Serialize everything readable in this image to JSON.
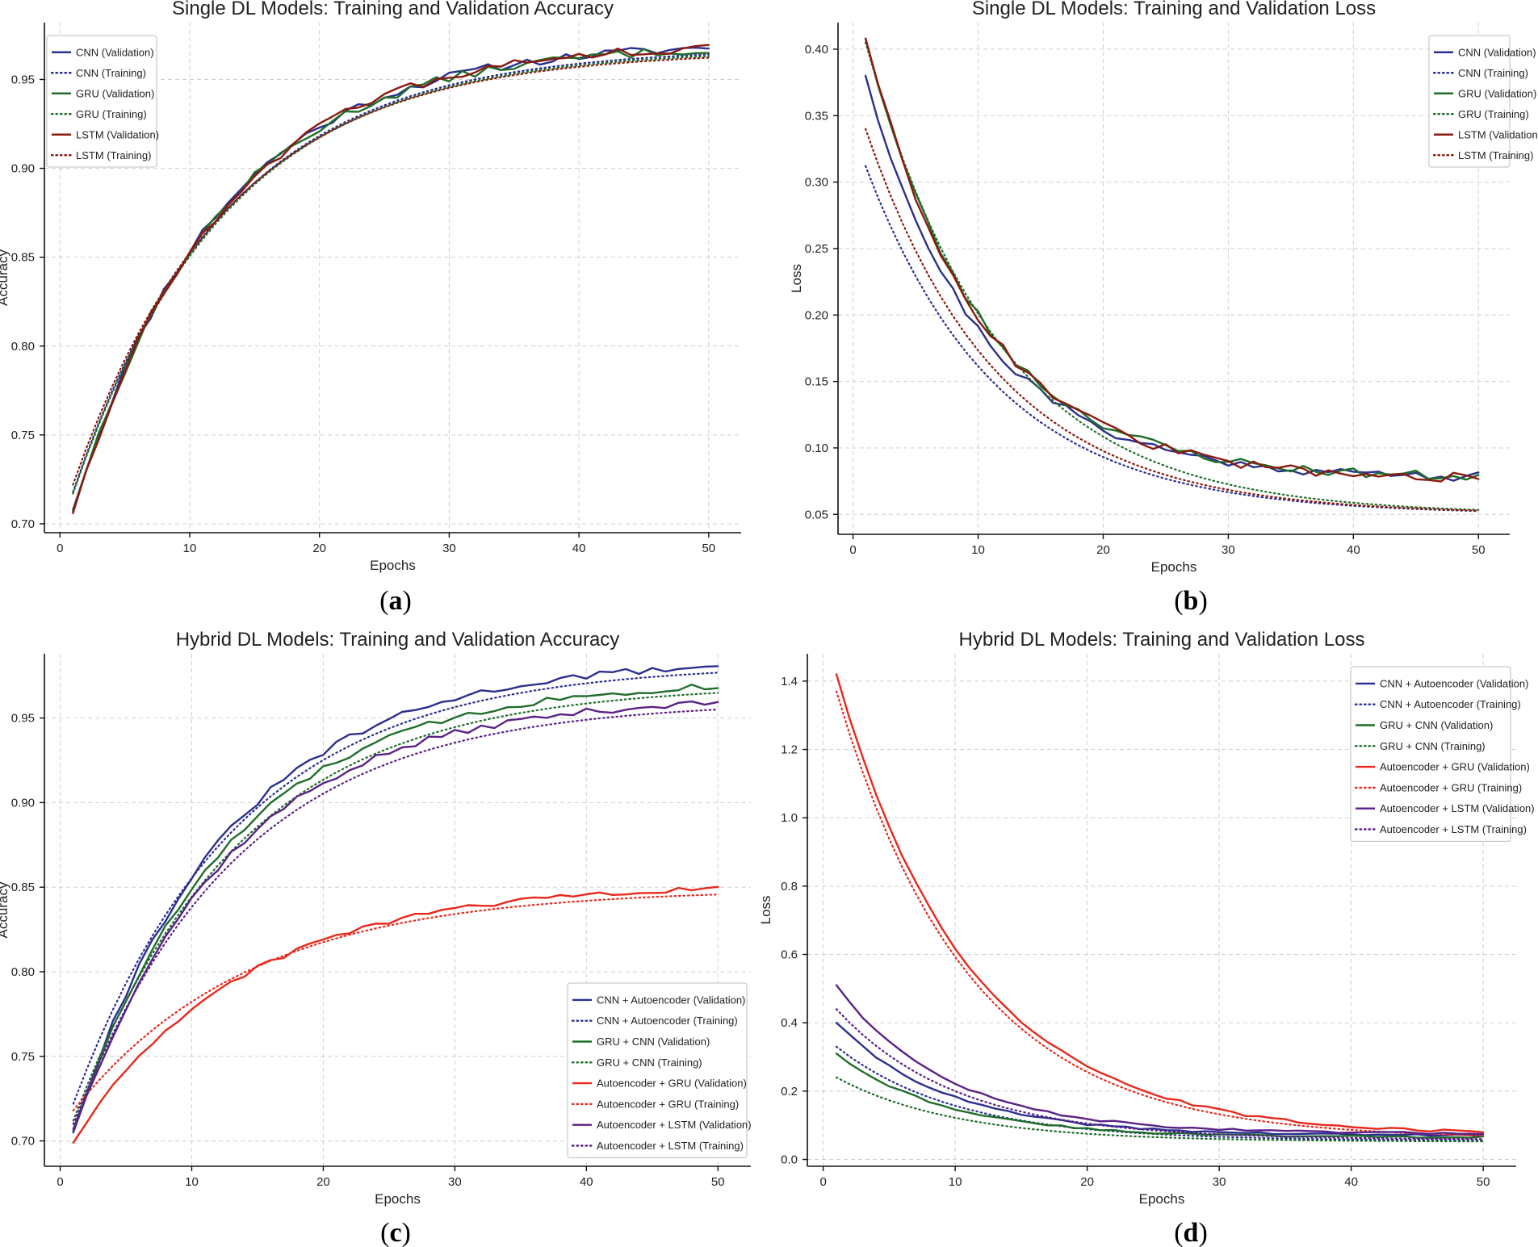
{
  "colors": {
    "cnn": "#2b2f8f",
    "gru": "#1f6e2a",
    "lstm": "#8b1a0e",
    "ae_gru": "#e8281b",
    "ae_lstm": "#5a2187",
    "grid": "#cfcfcf",
    "axis": "#111111"
  },
  "chart_data": [
    {
      "id": "a",
      "type": "line",
      "caption": "a",
      "title": "Single DL Models: Training and Validation Accuracy",
      "xlabel": "Epochs",
      "ylabel": "Accuracy",
      "xlim": [
        -1.2,
        52.5
      ],
      "ylim": [
        0.695,
        0.982
      ],
      "xticks": [
        0,
        10,
        20,
        30,
        40,
        50
      ],
      "yticks": [
        0.7,
        0.75,
        0.8,
        0.85,
        0.9,
        0.95
      ],
      "ytick_labels": [
        "0.70",
        "0.75",
        "0.80",
        "0.85",
        "0.90",
        "0.95"
      ],
      "legend_position": "top-left",
      "series": [
        {
          "name": "CNN (Validation)",
          "color": "cnn",
          "style": "solid",
          "start": 0.708,
          "end": 0.971,
          "rate": 0.09,
          "noise": 0.0025,
          "seed": 11
        },
        {
          "name": "CNN (Training)",
          "color": "cnn",
          "style": "dotted",
          "start": 0.718,
          "end": 0.968,
          "rate": 0.085,
          "noise": 0,
          "seed": 12
        },
        {
          "name": "GRU (Validation)",
          "color": "gru",
          "style": "solid",
          "start": 0.707,
          "end": 0.97,
          "rate": 0.09,
          "noise": 0.0025,
          "seed": 13
        },
        {
          "name": "GRU (Training)",
          "color": "gru",
          "style": "dotted",
          "start": 0.717,
          "end": 0.967,
          "rate": 0.085,
          "noise": 0,
          "seed": 14
        },
        {
          "name": "LSTM (Validation)",
          "color": "lstm",
          "style": "solid",
          "start": 0.706,
          "end": 0.971,
          "rate": 0.09,
          "noise": 0.0025,
          "seed": 15
        },
        {
          "name": "LSTM (Training)",
          "color": "lstm",
          "style": "dotted",
          "start": 0.722,
          "end": 0.966,
          "rate": 0.085,
          "noise": 0,
          "seed": 16
        }
      ]
    },
    {
      "id": "b",
      "type": "line",
      "caption": "b",
      "title": "Single DL Models: Training and Validation Loss",
      "xlabel": "Epochs",
      "ylabel": "Loss",
      "xlim": [
        -1.2,
        52.5
      ],
      "ylim": [
        0.035,
        0.42
      ],
      "xticks": [
        0,
        10,
        20,
        30,
        40,
        50
      ],
      "yticks": [
        0.05,
        0.1,
        0.15,
        0.2,
        0.25,
        0.3,
        0.35,
        0.4
      ],
      "ytick_labels": [
        "0.05",
        "0.10",
        "0.15",
        "0.20",
        "0.25",
        "0.30",
        "0.35",
        "0.40"
      ],
      "legend_position": "top-right",
      "series": [
        {
          "name": "CNN (Validation)",
          "color": "cnn",
          "style": "solid",
          "start": 0.38,
          "end": 0.077,
          "rate": 0.11,
          "noise": 0.0035,
          "seed": 21
        },
        {
          "name": "CNN (Training)",
          "color": "cnn",
          "style": "dotted",
          "start": 0.312,
          "end": 0.05,
          "rate": 0.095,
          "noise": 0,
          "seed": 22
        },
        {
          "name": "GRU (Validation)",
          "color": "gru",
          "style": "solid",
          "start": 0.408,
          "end": 0.077,
          "rate": 0.11,
          "noise": 0.0035,
          "seed": 23
        },
        {
          "name": "GRU (Training)",
          "color": "gru",
          "style": "dotted",
          "start": 0.405,
          "end": 0.05,
          "rate": 0.095,
          "noise": 0,
          "seed": 24
        },
        {
          "name": "LSTM (Validation)",
          "color": "lstm",
          "style": "solid",
          "start": 0.408,
          "end": 0.076,
          "rate": 0.11,
          "noise": 0.0035,
          "seed": 25
        },
        {
          "name": "LSTM (Training)",
          "color": "lstm",
          "style": "dotted",
          "start": 0.34,
          "end": 0.05,
          "rate": 0.095,
          "noise": 0,
          "seed": 26
        }
      ]
    },
    {
      "id": "c",
      "type": "line",
      "caption": "c",
      "title": "Hybrid DL Models: Training and Validation Accuracy",
      "xlabel": "Epochs",
      "ylabel": "Accuracy",
      "xlim": [
        -1.2,
        52.5
      ],
      "ylim": [
        0.685,
        0.988
      ],
      "xticks": [
        0,
        10,
        20,
        30,
        40,
        50
      ],
      "yticks": [
        0.7,
        0.75,
        0.8,
        0.85,
        0.9,
        0.95
      ],
      "ytick_labels": [
        "0.70",
        "0.75",
        "0.80",
        "0.85",
        "0.90",
        "0.95"
      ],
      "legend_position": "bottom-right",
      "series": [
        {
          "name": "CNN + Autoencoder (Validation)",
          "color": "cnn",
          "style": "solid",
          "start": 0.707,
          "end": 0.985,
          "rate": 0.085,
          "noise": 0.002,
          "seed": 31
        },
        {
          "name": "CNN + Autoencoder (Training)",
          "color": "cnn",
          "style": "dotted",
          "start": 0.722,
          "end": 0.982,
          "rate": 0.08,
          "noise": 0,
          "seed": 32
        },
        {
          "name": "GRU + CNN (Validation)",
          "color": "gru",
          "style": "solid",
          "start": 0.706,
          "end": 0.973,
          "rate": 0.085,
          "noise": 0.002,
          "seed": 33
        },
        {
          "name": "GRU + CNN (Training)",
          "color": "gru",
          "style": "dotted",
          "start": 0.712,
          "end": 0.97,
          "rate": 0.08,
          "noise": 0,
          "seed": 34
        },
        {
          "name": "Autoencoder + GRU (Validation)",
          "color": "ae_gru",
          "style": "solid",
          "start": 0.699,
          "end": 0.852,
          "rate": 0.08,
          "noise": 0.0015,
          "seed": 35
        },
        {
          "name": "Autoencoder + GRU (Training)",
          "color": "ae_gru",
          "style": "dotted",
          "start": 0.718,
          "end": 0.849,
          "rate": 0.075,
          "noise": 0,
          "seed": 36
        },
        {
          "name": "Autoencoder + LSTM (Validation)",
          "color": "ae_lstm",
          "style": "solid",
          "start": 0.705,
          "end": 0.963,
          "rate": 0.085,
          "noise": 0.002,
          "seed": 37
        },
        {
          "name": "Autoencoder + LSTM (Training)",
          "color": "ae_lstm",
          "style": "dotted",
          "start": 0.71,
          "end": 0.96,
          "rate": 0.08,
          "noise": 0,
          "seed": 38
        }
      ]
    },
    {
      "id": "d",
      "type": "line",
      "caption": "d",
      "title": "Hybrid DL Models: Training and Validation Loss",
      "xlabel": "Epochs",
      "ylabel": "Loss",
      "xlim": [
        -1.2,
        52.5
      ],
      "ylim": [
        -0.02,
        1.48
      ],
      "xticks": [
        0,
        10,
        20,
        30,
        40,
        50
      ],
      "yticks": [
        0.0,
        0.2,
        0.4,
        0.6,
        0.8,
        1.0,
        1.2,
        1.4
      ],
      "ytick_labels": [
        "0.0",
        "0.2",
        "0.4",
        "0.6",
        "0.8",
        "1.0",
        "1.2",
        "1.4"
      ],
      "legend_position": "top-right",
      "series": [
        {
          "name": "CNN + Autoencoder (Validation)",
          "color": "cnn",
          "style": "solid",
          "start": 0.4,
          "end": 0.07,
          "rate": 0.12,
          "noise": 0.003,
          "seed": 41
        },
        {
          "name": "CNN + Autoencoder (Training)",
          "color": "cnn",
          "style": "dotted",
          "start": 0.33,
          "end": 0.055,
          "rate": 0.11,
          "noise": 0,
          "seed": 42
        },
        {
          "name": "GRU + CNN (Validation)",
          "color": "gru",
          "style": "solid",
          "start": 0.31,
          "end": 0.065,
          "rate": 0.12,
          "noise": 0.003,
          "seed": 43
        },
        {
          "name": "GRU + CNN (Training)",
          "color": "gru",
          "style": "dotted",
          "start": 0.24,
          "end": 0.052,
          "rate": 0.11,
          "noise": 0,
          "seed": 44
        },
        {
          "name": "Autoencoder + GRU (Validation)",
          "color": "ae_gru",
          "style": "solid",
          "start": 1.42,
          "end": 0.07,
          "rate": 0.1,
          "noise": 0.004,
          "seed": 45
        },
        {
          "name": "Autoencoder + GRU (Training)",
          "color": "ae_gru",
          "style": "dotted",
          "start": 1.37,
          "end": 0.06,
          "rate": 0.1,
          "noise": 0,
          "seed": 46
        },
        {
          "name": "Autoencoder + LSTM (Validation)",
          "color": "ae_lstm",
          "style": "solid",
          "start": 0.51,
          "end": 0.075,
          "rate": 0.12,
          "noise": 0.003,
          "seed": 47
        },
        {
          "name": "Autoencoder + LSTM (Training)",
          "color": "ae_lstm",
          "style": "dotted",
          "start": 0.44,
          "end": 0.058,
          "rate": 0.11,
          "noise": 0,
          "seed": 48
        }
      ]
    }
  ]
}
